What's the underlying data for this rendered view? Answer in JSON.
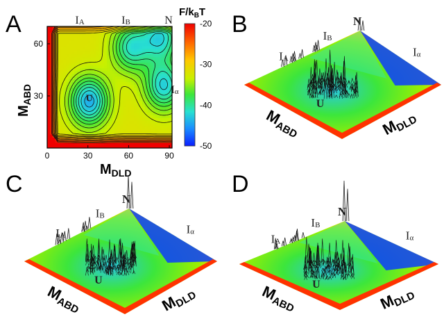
{
  "chart_data": [
    {
      "panel": "A",
      "type": "heatmap",
      "subtype": "contour",
      "xlabel": "M",
      "xlabel_sub": "DLD",
      "ylabel": "M",
      "ylabel_sub": "ABD",
      "x_ticks": [
        "0",
        "30",
        "60",
        "90"
      ],
      "y_ticks": [
        "30",
        "60"
      ],
      "xlim": [
        0,
        92
      ],
      "ylim": [
        0,
        70
      ],
      "colorbar": {
        "title": "F/k",
        "title_sub": "B",
        "title_tail": "T",
        "ticks": [
          "-20",
          "-30",
          "-40",
          "-50"
        ],
        "range": [
          -50,
          -20
        ],
        "colors": [
          "#0a1eff",
          "#1a8cff",
          "#28e0d0",
          "#3ce63c",
          "#c8f000",
          "#ffc800",
          "#ff6400",
          "#f00000"
        ]
      },
      "states": [
        {
          "label": "I",
          "sub": "A",
          "x": 24,
          "y": 70
        },
        {
          "label": "I",
          "sub": "B",
          "x": 58,
          "y": 70
        },
        {
          "label": "N",
          "sub": "",
          "x": 82,
          "y": 70
        },
        {
          "label": "I",
          "sub": "α",
          "x": 89,
          "y": 33
        },
        {
          "label": "U",
          "sub": "",
          "x": 31,
          "y": 27
        }
      ],
      "basins": [
        {
          "x": 31,
          "y": 27,
          "depth": 1.0
        },
        {
          "x": 62,
          "y": 58,
          "depth": 0.75
        },
        {
          "x": 86,
          "y": 36,
          "depth": 0.85
        },
        {
          "x": 84,
          "y": 64,
          "depth": 0.8
        }
      ]
    },
    {
      "panel": "B",
      "type": "surface",
      "x_axis": "M",
      "x_axis_sub": "DLD",
      "y_axis": "M",
      "y_axis_sub": "ABD",
      "states": [
        {
          "label": "I",
          "sub": "A"
        },
        {
          "label": "I",
          "sub": "B"
        },
        {
          "label": "N",
          "sub": ""
        },
        {
          "label": "I",
          "sub": "α"
        },
        {
          "label": "U",
          "sub": ""
        }
      ]
    },
    {
      "panel": "C",
      "type": "surface",
      "x_axis": "M",
      "x_axis_sub": "DLD",
      "y_axis": "M",
      "y_axis_sub": "ABD",
      "states": [
        {
          "label": "I",
          "sub": "A"
        },
        {
          "label": "I",
          "sub": "B"
        },
        {
          "label": "N",
          "sub": ""
        },
        {
          "label": "I",
          "sub": "α"
        },
        {
          "label": "U",
          "sub": ""
        }
      ]
    },
    {
      "panel": "D",
      "type": "surface",
      "x_axis": "M",
      "x_axis_sub": "DLD",
      "y_axis": "M",
      "y_axis_sub": "ABD",
      "states": [
        {
          "label": "I",
          "sub": "A"
        },
        {
          "label": "I",
          "sub": "B"
        },
        {
          "label": "N",
          "sub": ""
        },
        {
          "label": "I",
          "sub": "α"
        },
        {
          "label": "U",
          "sub": ""
        }
      ]
    }
  ]
}
